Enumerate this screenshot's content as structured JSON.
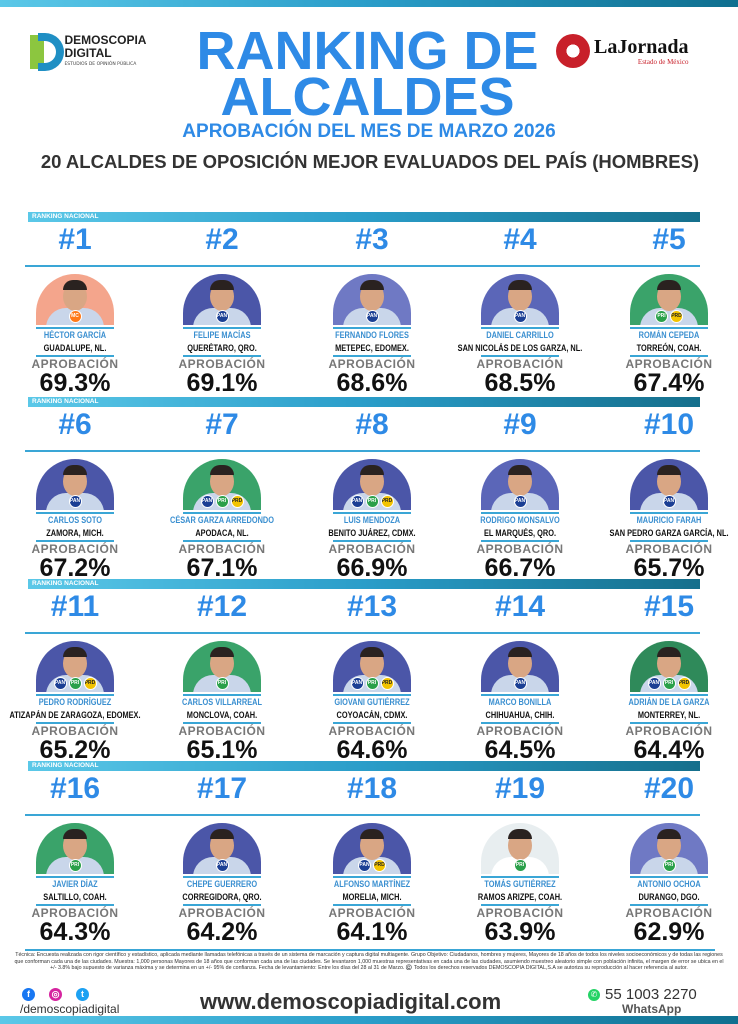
{
  "header": {
    "logo_name": "DEMOSCOPIA DIGITAL",
    "logo_tagline": "ESTUDIOS DE OPINIÓN PÚBLICA",
    "title_line1": "RANKING DE",
    "title_line2": "ALCALDES",
    "subtitle": "APROBACIÓN DEL MES DE MARZO 2026",
    "heading": "20 ALCALDES DE OPOSICIÓN MEJOR EVALUADOS DEL PAÍS (HOMBRES)",
    "partner_name": "LaJornada",
    "partner_sub": "Estado de México"
  },
  "banner_label": "RANKING NACIONAL",
  "approval_label": "APROBACIÓN",
  "colors": {
    "accent": "#2e8ae6",
    "line": "#3aa6d6"
  },
  "mayors": [
    {
      "rank": "#1",
      "name": "HÉCTOR GARCÍA",
      "city": "GUADALUPE, NL.",
      "approval": "69.3%",
      "bg": "#f4a58c",
      "parties": [
        "MC"
      ]
    },
    {
      "rank": "#2",
      "name": "FELIPE MACÍAS",
      "city": "QUERÉTARO, QRO.",
      "approval": "69.1%",
      "bg": "#4b56a8",
      "parties": [
        "PAN"
      ]
    },
    {
      "rank": "#3",
      "name": "FERNANDO FLORES",
      "city": "METEPEC, EDOMEX.",
      "approval": "68.6%",
      "bg": "#6f79c4",
      "parties": [
        "PAN"
      ]
    },
    {
      "rank": "#4",
      "name": "DANIEL CARRILLO",
      "city": "SAN NICOLÁS DE LOS GARZA, NL.",
      "approval": "68.5%",
      "bg": "#5b66b8",
      "parties": [
        "PAN"
      ]
    },
    {
      "rank": "#5",
      "name": "ROMÁN CEPEDA",
      "city": "TORREÓN, COAH.",
      "approval": "67.4%",
      "bg": "#3aa36a",
      "parties": [
        "PRI",
        "PRD"
      ]
    },
    {
      "rank": "#6",
      "name": "CARLOS SOTO",
      "city": "ZAMORA, MICH.",
      "approval": "67.2%",
      "bg": "#4b56a8",
      "parties": [
        "PAN"
      ]
    },
    {
      "rank": "#7",
      "name": "CÉSAR GARZA ARREDONDO",
      "city": "APODACA, NL.",
      "approval": "67.1%",
      "bg": "#3aa36a",
      "parties": [
        "PAN",
        "PRI",
        "PRD"
      ]
    },
    {
      "rank": "#8",
      "name": "LUIS MENDOZA",
      "city": "BENITO JUÁREZ, CDMX.",
      "approval": "66.9%",
      "bg": "#4b56a8",
      "parties": [
        "PAN",
        "PRI",
        "PRD"
      ]
    },
    {
      "rank": "#9",
      "name": "RODRIGO MONSALVO",
      "city": "EL MARQUÉS, QRO.",
      "approval": "66.7%",
      "bg": "#5b66b8",
      "parties": [
        "PAN"
      ]
    },
    {
      "rank": "#10",
      "name": "MAURICIO FARAH",
      "city": "SAN PEDRO GARZA GARCÍA, NL.",
      "approval": "65.7%",
      "bg": "#4b56a8",
      "parties": [
        "PAN"
      ]
    },
    {
      "rank": "#11",
      "name": "PEDRO RODRÍGUEZ",
      "city": "ATIZAPÁN DE ZARAGOZA, EDOMEX.",
      "approval": "65.2%",
      "bg": "#4b56a8",
      "parties": [
        "PAN",
        "PRI",
        "PRD"
      ]
    },
    {
      "rank": "#12",
      "name": "CARLOS VILLARREAL",
      "city": "MONCLOVA, COAH.",
      "approval": "65.1%",
      "bg": "#3aa36a",
      "parties": [
        "PRI"
      ]
    },
    {
      "rank": "#13",
      "name": "GIOVANI GUTIÉRREZ",
      "city": "COYOACÁN, CDMX.",
      "approval": "64.6%",
      "bg": "#4b56a8",
      "parties": [
        "PAN",
        "PRI",
        "PRD"
      ]
    },
    {
      "rank": "#14",
      "name": "MARCO BONILLA",
      "city": "CHIHUAHUA, CHIH.",
      "approval": "64.5%",
      "bg": "#4b56a8",
      "parties": [
        "PAN"
      ]
    },
    {
      "rank": "#15",
      "name": "ADRIÁN DE LA GARZA",
      "city": "MONTERREY, NL.",
      "approval": "64.4%",
      "bg": "#2f8a5a",
      "parties": [
        "PAN",
        "PRI",
        "PRD"
      ]
    },
    {
      "rank": "#16",
      "name": "JAVIER DÍAZ",
      "city": "SALTILLO, COAH.",
      "approval": "64.3%",
      "bg": "#3aa36a",
      "parties": [
        "PRI"
      ]
    },
    {
      "rank": "#17",
      "name": "CHEPE GUERRERO",
      "city": "CORREGIDORA, QRO.",
      "approval": "64.2%",
      "bg": "#4b56a8",
      "parties": [
        "PAN"
      ]
    },
    {
      "rank": "#18",
      "name": "ALFONSO MARTÍNEZ",
      "city": "MORELIA, MICH.",
      "approval": "64.1%",
      "bg": "#4b56a8",
      "parties": [
        "PAN",
        "PRD"
      ]
    },
    {
      "rank": "#19",
      "name": "TOMÁS GUTIÉRREZ",
      "city": "RAMOS ARIZPE, COAH.",
      "approval": "63.9%",
      "bg": "#e8eef0",
      "parties": [
        "PRI"
      ]
    },
    {
      "rank": "#20",
      "name": "ANTONIO OCHOA",
      "city": "DURANGO, DGO.",
      "approval": "62.9%",
      "bg": "#6f79c4",
      "parties": [
        "PRI"
      ]
    }
  ],
  "footer": {
    "disclaimer": "Técnica: Encuesta realizada con rigor científico y estadístico, aplicada mediante llamadas telefónicas a través de un sistema de marcación y captura digital multiagente. Grupo Objetivo: Ciudadanos, hombres y mujeres, Mayores de 18 años de todos los niveles socioeconómicos y de todas las regiones que conforman cada una de las ciudades. Muestra: 1,000 personas Mayores de 18 años que conforman cada una de las ciudades. Se levantaron 1,000 muestras representativas en cada una de las ciudades, asumiendo muestreo aleatorio simple con población infinita, el margen de error se ubica en el +/- 3.8% bajo supuesto de varianza máxima y se determina en un +/- 95% de confianza. Fecha de levantamiento: Entre los días del 28 al 31 de Marzo. ©️ Todos los derechos reservados DEMOSCOPIA DIGITAL,S.A se autoriza su reproducción al hacer referencia al autor.",
    "social_handle": "/demoscopiadigital",
    "website": "www.demoscopiadigital.com",
    "phone": "55 1003 2270",
    "phone_label": "WhatsApp"
  }
}
